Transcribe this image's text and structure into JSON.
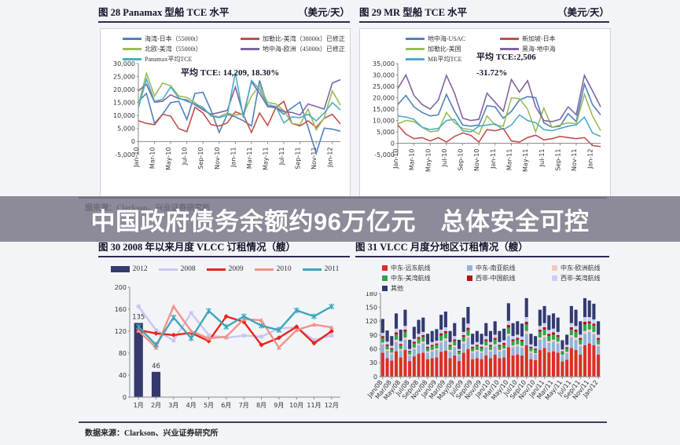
{
  "banner": {
    "text": "中国政府债务余额约96万亿元　总体安全可控"
  },
  "sources": {
    "top": "据来源：Clarkson、兴业证券研究所",
    "bottom": "数据来源：Clarkson、兴业证券研究所"
  },
  "chart_data": [
    {
      "id": "fig28",
      "type": "line",
      "title": "图 28 Panamax 型船 TCE 水平",
      "unit_label": "（美元/天）",
      "annotation": "平均 TCE: 14,209, 18.30%",
      "legend_position": "top",
      "grid": false,
      "ylim": [
        -5000,
        30000
      ],
      "ystep": 5000,
      "yfmt": "comma",
      "xtick_every": 2,
      "xlabel_rotate": -90,
      "x": [
        "Jan-10",
        "Feb-10",
        "Mar-10",
        "Apr-10",
        "May-10",
        "Jun-10",
        "Jul-10",
        "Aug-10",
        "Sep-10",
        "Oct-10",
        "Nov-10",
        "Dec-10",
        "Jan-11",
        "Feb-11",
        "Mar-11",
        "Apr-11",
        "May-11",
        "Jun-11",
        "Jul-11",
        "Aug-11",
        "Sep-11",
        "Oct-11",
        "Nov-11",
        "Dec-11",
        "Jan-12",
        "Feb-12"
      ],
      "series": [
        {
          "name": "海湾-日本（55000t）",
          "color": "#4F81BD",
          "values": [
            15500,
            18500,
            7000,
            10500,
            15000,
            15500,
            8500,
            18500,
            19000,
            12000,
            3500,
            10500,
            9500,
            8000,
            6000,
            23500,
            13500,
            13000,
            10500,
            13000,
            15200,
            5500,
            -4500,
            5200,
            4800,
            4000
          ]
        },
        {
          "name": "加勒比-美湾（38000t）已修正",
          "color": "#C0504D",
          "values": [
            8000,
            7000,
            6500,
            10500,
            9800,
            5000,
            3800,
            13200,
            11000,
            6500,
            6000,
            7200,
            11500,
            10200,
            3500,
            11000,
            6200,
            13000,
            15500,
            7000,
            6000,
            8000,
            5500,
            9000,
            10500,
            6800
          ]
        },
        {
          "name": "北欧-美湾（55000t）",
          "color": "#9BBB59",
          "values": [
            14000,
            26300,
            17500,
            22500,
            21500,
            17500,
            17000,
            15000,
            12500,
            10200,
            9500,
            11000,
            10200,
            10500,
            17500,
            21500,
            15000,
            14500,
            12000,
            7000,
            6500,
            12500,
            4500,
            9200,
            19500,
            14000
          ]
        },
        {
          "name": "地中海-欧洲（45000t）已修正",
          "color": "#8064A2",
          "values": [
            19500,
            22000,
            15200,
            15500,
            18000,
            16500,
            16000,
            14200,
            12200,
            10500,
            11200,
            12000,
            21000,
            10200,
            23000,
            18500,
            13500,
            13200,
            11500,
            11200,
            10200,
            14500,
            13500,
            12500,
            22500,
            23800
          ]
        },
        {
          "name": "Panamax平均TCE",
          "color": "#4BACC6",
          "values": [
            13000,
            24000,
            15500,
            16200,
            21000,
            16800,
            15500,
            14500,
            13200,
            9800,
            9200,
            10200,
            26500,
            9200,
            23500,
            20000,
            14200,
            13500,
            7200,
            9500,
            9200,
            10500,
            8000,
            11000,
            15000,
            12200
          ]
        }
      ]
    },
    {
      "id": "fig29",
      "type": "line",
      "title": "图 29 MR 型船 TCE 水平",
      "unit_label": "（美元/天）",
      "annotation": "平均 TCE:2,506\n-31.72%",
      "legend_position": "top",
      "grid": false,
      "ylim": [
        -5000,
        35000
      ],
      "ystep": 5000,
      "yfmt": "comma",
      "xtick_every": 2,
      "xlabel_rotate": -90,
      "x": [
        "Jan-10",
        "Feb-10",
        "Mar-10",
        "Apr-10",
        "May-10",
        "Jun-10",
        "Jul-10",
        "Aug-10",
        "Sep-10",
        "Oct-10",
        "Nov-10",
        "Dec-10",
        "Jan-11",
        "Feb-11",
        "Mar-11",
        "Apr-11",
        "May-11",
        "Jun-11",
        "Jul-11",
        "Aug-11",
        "Sep-11",
        "Oct-11",
        "Nov-11",
        "Dec-11",
        "Jan-12",
        "Feb-12"
      ],
      "series": [
        {
          "name": "地中海-USAC",
          "color": "#4F81BD",
          "values": [
            17000,
            21000,
            16000,
            13500,
            12000,
            12500,
            21500,
            14000,
            8000,
            7500,
            8000,
            16500,
            16000,
            11000,
            14000,
            19000,
            20500,
            20000,
            9000,
            7000,
            7500,
            13000,
            9500,
            26000,
            17000,
            12500
          ]
        },
        {
          "name": "新加坡-日本",
          "color": "#C0504D",
          "values": [
            8000,
            4000,
            2000,
            2500,
            1000,
            2500,
            500,
            3000,
            4500,
            3500,
            500,
            6000,
            5500,
            6500,
            1000,
            500,
            2500,
            3500,
            1500,
            2000,
            3000,
            2500,
            2000,
            2500,
            -1000,
            -1500
          ]
        },
        {
          "name": "加勒比-美国",
          "color": "#9BBB59",
          "values": [
            8500,
            10000,
            9500,
            7000,
            5000,
            5500,
            13500,
            9000,
            6500,
            6000,
            4000,
            12000,
            8000,
            7500,
            20000,
            19500,
            15000,
            5000,
            15500,
            7000,
            8000,
            9000,
            8500,
            21500,
            12000,
            5500
          ]
        },
        {
          "name": "黑海-地中海",
          "color": "#8064A2",
          "values": [
            24000,
            30000,
            21000,
            17000,
            15000,
            19000,
            29800,
            22000,
            11000,
            10000,
            10500,
            22000,
            18000,
            14000,
            28000,
            22500,
            27500,
            16000,
            10000,
            9500,
            10500,
            16000,
            12500,
            29800,
            23000,
            16000
          ]
        },
        {
          "name": "MR平均TCE",
          "color": "#4BACC6",
          "values": [
            12000,
            11500,
            10500,
            7000,
            6000,
            6500,
            10000,
            10500,
            5500,
            5000,
            7500,
            8000,
            8500,
            6000,
            8000,
            12500,
            10000,
            9000,
            6000,
            5500,
            6500,
            7500,
            8000,
            11500,
            4500,
            3000
          ]
        }
      ]
    },
    {
      "id": "fig30",
      "type": "combo",
      "title": "图 30 2008 年以来月度 VLCC 订租情况（艘）",
      "legend_position": "top",
      "grid": false,
      "ylim": [
        0,
        200
      ],
      "ystep": 40,
      "yfmt": "plain",
      "xtick_every": 1,
      "bar_labels": true,
      "x": [
        "1月",
        "2月",
        "3月",
        "4月",
        "5月",
        "6月",
        "7月",
        "8月",
        "9月",
        "10月",
        "11月",
        "12月"
      ],
      "series": [
        {
          "name": "2012",
          "color": "#343a6e",
          "kind": "bar",
          "swatch": "bar",
          "values": [
            135,
            46,
            null,
            null,
            null,
            null,
            null,
            null,
            null,
            null,
            null,
            null
          ]
        },
        {
          "name": "2008",
          "color": "#c9c6f2",
          "marker": "sq",
          "width": 2.4,
          "swatch": "line",
          "values": [
            165,
            122,
            103,
            153,
            113,
            108,
            112,
            110,
            125,
            127,
            104,
            112
          ]
        },
        {
          "name": "2009",
          "color": "#e8251d",
          "marker": "di",
          "width": 2.4,
          "swatch": "line",
          "values": [
            122,
            116,
            113,
            117,
            102,
            147,
            137,
            95,
            108,
            128,
            98,
            120
          ]
        },
        {
          "name": "2010",
          "color": "#f2928a",
          "marker": "tri",
          "width": 2.4,
          "swatch": "line",
          "values": [
            121,
            90,
            165,
            120,
            107,
            110,
            142,
            140,
            90,
            122,
            132,
            127
          ]
        },
        {
          "name": "2011",
          "color": "#3da7b8",
          "marker": "x",
          "width": 2.4,
          "swatch": "line",
          "values": [
            128,
            95,
            145,
            107,
            157,
            128,
            147,
            130,
            122,
            158,
            147,
            165
          ]
        }
      ]
    },
    {
      "id": "fig31",
      "type": "stacked",
      "title": "图 31 VLCC 月度分地区订租情况（艘）",
      "legend_position": "top",
      "grid": false,
      "ylim": [
        0,
        180
      ],
      "ystep": 30,
      "yfmt": "plain",
      "xtick_every": 2,
      "xlabel_rotate": -52,
      "x": [
        "Jan/08",
        "Feb/08",
        "Mar/08",
        "Apr/08",
        "May/08",
        "Jun/08",
        "Jul/08",
        "Aug/08",
        "Sep/08",
        "Oct/08",
        "Nov/08",
        "Dec/08",
        "Jan/09",
        "Feb/09",
        "Mar/09",
        "Apr/09",
        "May/09",
        "Jun/09",
        "Jul/09",
        "Aug/09",
        "Sep/09",
        "Oct/09",
        "Nov/09",
        "Dec/09",
        "Jan/10",
        "Feb/10",
        "Mar/10",
        "Apr/10",
        "May/10",
        "Jun/10",
        "Jul/10",
        "Aug/10",
        "Sep/10",
        "Oct/10",
        "Nov/10",
        "Dec/10",
        "Jan/11",
        "Feb/11",
        "Mar/11",
        "Apr/11",
        "May/11",
        "Jun/11",
        "Jul/11",
        "Aug/11",
        "Sep/11",
        "Oct/11",
        "Nov/11",
        "Dec/11",
        "Jan/12"
      ],
      "series": [
        {
          "name": "中东-远东航线",
          "color": "#d93025",
          "swatch": "sq",
          "values": [
            52,
            40,
            35,
            55,
            42,
            58,
            34,
            44,
            50,
            52,
            38,
            40,
            42,
            54,
            56,
            40,
            46,
            34,
            52,
            60,
            38,
            40,
            38,
            46,
            40,
            48,
            40,
            42,
            64,
            46,
            48,
            46,
            68,
            38,
            36,
            58,
            62,
            53,
            55,
            52,
            33,
            37,
            62,
            58,
            48,
            68,
            72,
            68,
            48
          ]
        },
        {
          "name": "中东-南亚航线",
          "color": "#95b3d7",
          "swatch": "sq",
          "values": [
            18,
            16,
            14,
            20,
            15,
            22,
            12,
            16,
            18,
            20,
            14,
            15,
            16,
            20,
            22,
            15,
            18,
            12,
            20,
            24,
            14,
            15,
            14,
            18,
            15,
            18,
            15,
            16,
            24,
            18,
            18,
            17,
            25,
            14,
            13,
            22,
            23,
            20,
            21,
            20,
            12,
            14,
            23,
            22,
            18,
            25,
            25,
            24,
            18
          ]
        },
        {
          "name": "中东-欧洲航线",
          "color": "#f4c7bd",
          "swatch": "sq",
          "values": [
            4,
            3,
            3,
            5,
            3,
            5,
            2,
            3,
            4,
            4,
            3,
            3,
            3,
            4,
            5,
            3,
            4,
            2,
            4,
            5,
            3,
            3,
            3,
            4,
            3,
            4,
            3,
            3,
            5,
            4,
            4,
            4,
            6,
            3,
            2,
            5,
            5,
            4,
            4,
            4,
            2,
            3,
            5,
            5,
            4,
            6,
            5,
            5,
            4
          ]
        },
        {
          "name": "中东-美湾航线",
          "color": "#2ea44a",
          "swatch": "sq",
          "values": [
            10,
            8,
            7,
            11,
            8,
            12,
            6,
            9,
            10,
            10,
            7,
            8,
            8,
            11,
            11,
            8,
            9,
            6,
            10,
            12,
            7,
            8,
            7,
            9,
            8,
            10,
            8,
            8,
            13,
            9,
            10,
            9,
            14,
            7,
            7,
            12,
            12,
            11,
            11,
            10,
            6,
            7,
            12,
            12,
            10,
            14,
            13,
            13,
            10
          ]
        },
        {
          "name": "西非-中国航线",
          "color": "#b01513",
          "swatch": "sq",
          "values": [
            4,
            3,
            3,
            5,
            3,
            5,
            2,
            4,
            4,
            4,
            3,
            3,
            3,
            5,
            5,
            3,
            4,
            2,
            4,
            5,
            3,
            3,
            3,
            4,
            3,
            4,
            3,
            4,
            6,
            4,
            4,
            4,
            6,
            3,
            3,
            5,
            5,
            5,
            5,
            4,
            2,
            3,
            5,
            5,
            4,
            6,
            5,
            5,
            4
          ]
        },
        {
          "name": "西非-美湾航线",
          "color": "#ccccf5",
          "swatch": "sq",
          "values": [
            7,
            6,
            5,
            8,
            6,
            8,
            4,
            6,
            7,
            7,
            5,
            6,
            6,
            8,
            8,
            6,
            7,
            4,
            7,
            9,
            5,
            6,
            5,
            7,
            6,
            7,
            6,
            6,
            9,
            7,
            7,
            7,
            10,
            5,
            5,
            8,
            9,
            8,
            8,
            7,
            4,
            5,
            9,
            8,
            7,
            10,
            9,
            9,
            7
          ]
        },
        {
          "name": "其他",
          "color": "#323a70",
          "swatch": "sq",
          "values": [
            30,
            24,
            21,
            33,
            25,
            35,
            20,
            26,
            30,
            31,
            23,
            24,
            25,
            32,
            34,
            24,
            28,
            20,
            31,
            36,
            23,
            24,
            23,
            28,
            24,
            29,
            24,
            25,
            38,
            28,
            29,
            28,
            41,
            23,
            22,
            35,
            37,
            32,
            33,
            31,
            20,
            22,
            37,
            35,
            29,
            41,
            36,
            34,
            29
          ]
        }
      ]
    }
  ]
}
